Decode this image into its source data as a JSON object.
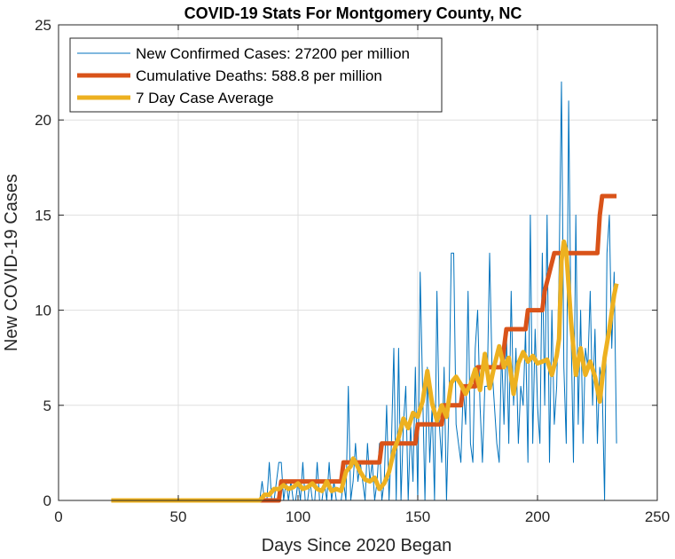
{
  "chart_data": {
    "type": "line",
    "title": "COVID-19 Stats For Montgomery County, NC",
    "xlabel": "Days Since 2020 Began",
    "ylabel": "New COVID-19 Cases",
    "xlim": [
      0,
      250
    ],
    "ylim": [
      0,
      25
    ],
    "xticks": [
      0,
      50,
      100,
      150,
      200,
      250
    ],
    "yticks": [
      0,
      5,
      10,
      15,
      20,
      25
    ],
    "grid": true,
    "legend_position": "top-left",
    "series": [
      {
        "name": "New Confirmed Cases: 27200 per million",
        "color": "#0072BD",
        "x": [
          84,
          85,
          86,
          87,
          88,
          89,
          90,
          91,
          92,
          93,
          94,
          95,
          96,
          97,
          98,
          99,
          100,
          101,
          102,
          103,
          104,
          105,
          106,
          107,
          108,
          109,
          110,
          111,
          112,
          113,
          114,
          115,
          116,
          117,
          118,
          119,
          120,
          121,
          122,
          123,
          124,
          125,
          126,
          127,
          128,
          129,
          130,
          131,
          132,
          133,
          134,
          135,
          136,
          137,
          138,
          139,
          140,
          141,
          142,
          143,
          144,
          145,
          146,
          147,
          148,
          149,
          150,
          151,
          152,
          153,
          154,
          155,
          156,
          157,
          158,
          159,
          160,
          161,
          162,
          163,
          164,
          165,
          166,
          167,
          168,
          169,
          170,
          171,
          172,
          173,
          174,
          175,
          176,
          177,
          178,
          179,
          180,
          181,
          182,
          183,
          184,
          185,
          186,
          187,
          188,
          189,
          190,
          191,
          192,
          193,
          194,
          195,
          196,
          197,
          198,
          199,
          200,
          201,
          202,
          203,
          204,
          205,
          206,
          207,
          208,
          209,
          210,
          211,
          212,
          213,
          214,
          215,
          216,
          217,
          218,
          219,
          220,
          221,
          222,
          223,
          224,
          225,
          226,
          227,
          228,
          229,
          230,
          231,
          232,
          233
        ],
        "y": [
          0,
          1,
          0,
          0,
          2,
          0,
          0,
          1,
          2,
          2,
          0,
          1,
          0,
          1,
          0,
          0,
          1,
          0,
          2,
          0,
          0,
          1,
          0,
          0,
          2,
          0,
          0,
          1,
          0,
          2,
          0,
          1,
          0,
          0,
          0,
          1,
          0,
          6,
          0,
          1,
          3,
          1,
          2,
          1,
          0,
          3,
          1,
          2,
          0,
          1,
          3,
          0,
          1,
          5,
          0,
          3,
          8,
          0,
          8,
          0,
          4,
          6,
          0,
          4,
          1,
          7,
          0,
          12,
          6,
          0,
          7,
          2,
          5,
          0,
          11,
          4,
          2,
          7,
          0,
          5,
          13,
          13,
          4,
          3,
          2,
          6,
          4,
          11,
          3,
          2,
          8,
          10,
          5,
          2,
          6,
          6,
          13,
          7,
          5,
          3,
          2,
          8,
          4,
          9,
          3,
          11,
          5,
          8,
          3,
          6,
          5,
          9,
          2,
          15,
          3,
          9,
          5,
          3,
          13,
          5,
          15,
          2,
          10,
          4,
          6,
          12,
          22,
          7,
          3,
          21,
          9,
          2,
          15,
          4,
          10,
          3,
          8,
          7,
          11,
          5,
          9,
          3,
          7,
          6,
          0,
          13,
          15,
          8,
          12,
          3
        ],
        "line_width": 1
      },
      {
        "name": "Cumulative Deaths: 588.8 per million",
        "color": "#D95319",
        "steps": [
          [
            83,
            0
          ],
          [
            92,
            0
          ],
          [
            93,
            1
          ],
          [
            118,
            1
          ],
          [
            119,
            2
          ],
          [
            134,
            2
          ],
          [
            135,
            3
          ],
          [
            149,
            3
          ],
          [
            150,
            4
          ],
          [
            160,
            4
          ],
          [
            161,
            5
          ],
          [
            168,
            5
          ],
          [
            169,
            6
          ],
          [
            174,
            6
          ],
          [
            175,
            7
          ],
          [
            185,
            7
          ],
          [
            186,
            8
          ],
          [
            187,
            9
          ],
          [
            195,
            9
          ],
          [
            196,
            10
          ],
          [
            202,
            10
          ],
          [
            203,
            11
          ],
          [
            205,
            12
          ],
          [
            207,
            13
          ],
          [
            225,
            13
          ],
          [
            226,
            15
          ],
          [
            227,
            16
          ],
          [
            233,
            16
          ]
        ],
        "line_width": 5
      },
      {
        "name": "7 Day Case Average",
        "color": "#EDB120",
        "x": [
          22,
          60,
          70,
          84,
          86,
          88,
          90,
          92,
          94,
          96,
          98,
          100,
          102,
          104,
          106,
          108,
          110,
          112,
          114,
          116,
          118,
          120,
          122,
          123,
          124,
          126,
          128,
          130,
          132,
          134,
          136,
          138,
          140,
          142,
          144,
          146,
          148,
          150,
          152,
          154,
          156,
          158,
          160,
          162,
          164,
          166,
          168,
          170,
          172,
          174,
          176,
          178,
          180,
          182,
          184,
          186,
          188,
          190,
          192,
          194,
          196,
          198,
          200,
          202,
          204,
          206,
          208,
          209,
          210,
          211,
          212,
          214,
          216,
          218,
          220,
          222,
          224,
          226,
          228,
          230,
          232,
          233
        ],
        "y": [
          0,
          0,
          0,
          0,
          0.3,
          0.3,
          0.6,
          0.6,
          0.8,
          0.6,
          0.7,
          0.9,
          0.6,
          0.7,
          0.9,
          0.6,
          0.5,
          1.0,
          0.5,
          0.6,
          0.5,
          1.5,
          1.8,
          2.2,
          2.0,
          1.5,
          1.1,
          1.0,
          1.2,
          0.6,
          0.9,
          1.5,
          2.6,
          3.3,
          4.3,
          3.8,
          4.6,
          4.4,
          5.2,
          6.8,
          5.1,
          4.2,
          5.0,
          4.4,
          6.2,
          6.5,
          6.1,
          5.6,
          6.1,
          6.9,
          5.8,
          7.7,
          5.9,
          7.1,
          8.1,
          7.0,
          7.5,
          5.6,
          7.2,
          7.8,
          7.3,
          7.6,
          7.2,
          7.3,
          7.4,
          6.6,
          7.6,
          8.5,
          12.6,
          13.6,
          13.1,
          9.4,
          6.6,
          8.0,
          6.6,
          7.3,
          6.5,
          5.2,
          7.5,
          9.0,
          10.8,
          11.4
        ],
        "line_width": 5
      }
    ]
  }
}
